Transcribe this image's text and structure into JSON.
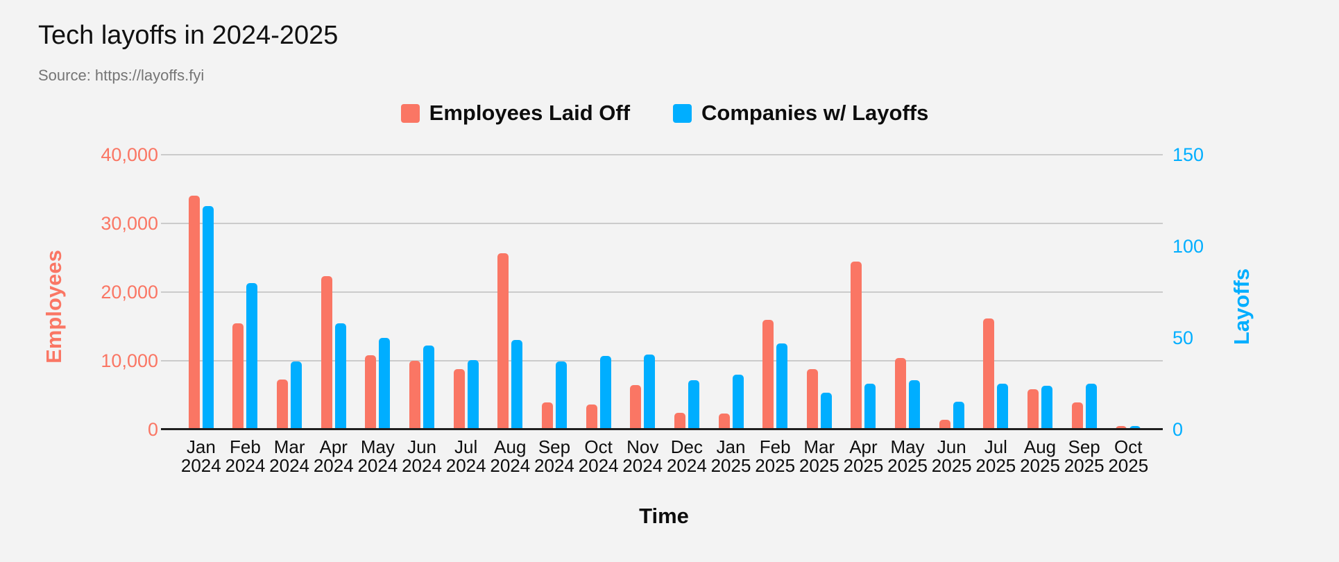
{
  "header": {
    "title": "Tech layoffs in 2024-2025",
    "source": "Source: https://layoffs.fyi"
  },
  "legend": {
    "items": [
      {
        "label": "Employees Laid Off",
        "color": "#fa7664"
      },
      {
        "label": "Companies w/ Layoffs",
        "color": "#00aeff"
      }
    ]
  },
  "chart_data": {
    "type": "bar",
    "title": "Tech layoffs in 2024-2025",
    "source": "Source: https://layoffs.fyi",
    "xlabel": "Time",
    "grid": true,
    "legend_position": "top",
    "categories": [
      "Jan 2024",
      "Feb 2024",
      "Mar 2024",
      "Apr 2024",
      "May 2024",
      "Jun 2024",
      "Jul 2024",
      "Aug 2024",
      "Sep 2024",
      "Oct 2024",
      "Nov 2024",
      "Dec 2024",
      "Jan 2025",
      "Feb 2025",
      "Mar 2025",
      "Apr 2025",
      "May 2025",
      "Jun 2025",
      "Jul 2025",
      "Aug 2025",
      "Sep 2025",
      "Oct 2025"
    ],
    "series": [
      {
        "name": "Employees Laid Off",
        "axis": "left",
        "color": "#fa7664",
        "values": [
          34000,
          15500,
          7300,
          22300,
          10800,
          10000,
          8800,
          25700,
          3900,
          3600,
          6500,
          2400,
          2300,
          16000,
          8800,
          24400,
          10400,
          1400,
          16200,
          5900,
          3900,
          500
        ]
      },
      {
        "name": "Companies w/ Layoffs",
        "axis": "right",
        "color": "#00aeff",
        "values": [
          122,
          80,
          37,
          58,
          50,
          46,
          38,
          49,
          37,
          40,
          41,
          27,
          30,
          47,
          20,
          25,
          27,
          15,
          25,
          24,
          25,
          2
        ]
      }
    ],
    "left_axis": {
      "label": "Employees",
      "min": 0,
      "max": 40000,
      "ticks": [
        0,
        10000,
        20000,
        30000,
        40000
      ],
      "tick_labels": [
        "0",
        "10,000",
        "20,000",
        "30,000",
        "40,000"
      ],
      "color": "#fa7664"
    },
    "right_axis": {
      "label": "Layoffs",
      "min": 0,
      "max": 150,
      "ticks": [
        0,
        50,
        100,
        150
      ],
      "tick_labels": [
        "0",
        "50",
        "100",
        "150"
      ],
      "color": "#00aeff"
    }
  }
}
